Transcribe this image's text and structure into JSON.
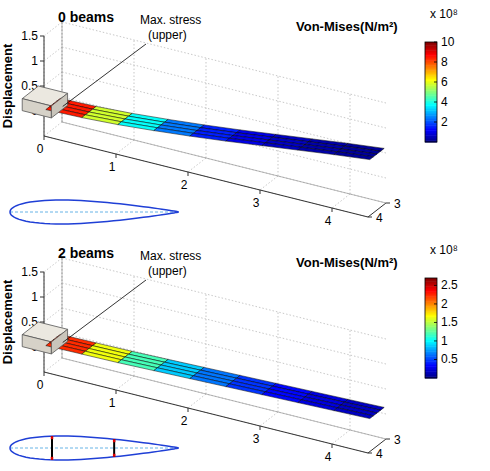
{
  "chart_data": [
    {
      "type": "surface3d",
      "title": "0 beams",
      "annotation": [
        "Max. stress",
        "(upper)"
      ],
      "zlabel": "Displacement",
      "x": [
        0,
        0.5,
        1,
        1.5,
        2,
        2.5,
        3,
        3.5,
        4,
        4.5
      ],
      "displacement": [
        0,
        0.02,
        0.06,
        0.12,
        0.19,
        0.27,
        0.36,
        0.45,
        0.54,
        0.62
      ],
      "stress": [
        10,
        7,
        4.6,
        3,
        1.9,
        1.2,
        0.8,
        0.5,
        0.3,
        0.2
      ],
      "chord": [
        3.1,
        3.9
      ],
      "xlim": [
        0,
        4.5
      ],
      "xticks": [
        0,
        1,
        2,
        3,
        4
      ],
      "ylim": [
        3,
        4
      ],
      "yticks": [
        3,
        4
      ],
      "zlim": [
        -0.5,
        1.5
      ],
      "zticks": [
        0,
        0.5,
        1,
        1.5
      ],
      "colorbar_title": "Von-Mises(N/m²)",
      "colorbar_scale": "x 10⁸",
      "colorbar_range": [
        0,
        10
      ],
      "colorbar_ticks": [
        2,
        4,
        6,
        8,
        10
      ],
      "inset_beams": [],
      "grid": true
    },
    {
      "type": "surface3d",
      "title": "2 beams",
      "annotation": [
        "Max. stress",
        "(upper)"
      ],
      "zlabel": "Displacement",
      "x": [
        0,
        0.5,
        1,
        1.5,
        2,
        2.5,
        3,
        3.5,
        4,
        4.5
      ],
      "displacement": [
        0,
        0.01,
        0.02,
        0.04,
        0.06,
        0.08,
        0.1,
        0.12,
        0.14,
        0.16
      ],
      "stress": [
        2.6,
        1.9,
        1.4,
        1,
        0.75,
        0.55,
        0.4,
        0.3,
        0.2,
        0.15
      ],
      "chord": [
        3.1,
        3.9
      ],
      "xlim": [
        0,
        4.5
      ],
      "xticks": [
        0,
        1,
        2,
        3,
        4
      ],
      "ylim": [
        3,
        4
      ],
      "yticks": [
        3,
        4
      ],
      "zlim": [
        -0.5,
        1.5
      ],
      "zticks": [
        0,
        0.5,
        1,
        1.5
      ],
      "colorbar_title": "Von-Mises(N/m²)",
      "colorbar_scale": "x 10⁸",
      "colorbar_range": [
        0,
        2.7
      ],
      "colorbar_ticks": [
        0.5,
        1,
        1.5,
        2,
        2.5
      ],
      "inset_beams": [
        0.25,
        0.62
      ],
      "grid": true
    }
  ]
}
